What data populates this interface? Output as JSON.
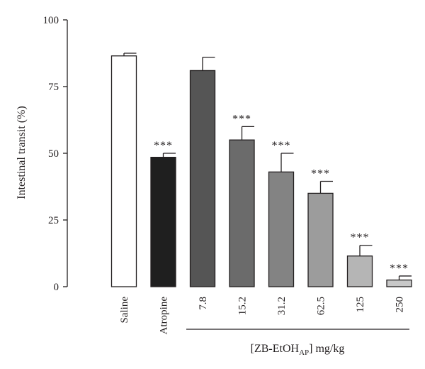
{
  "chart_data": {
    "type": "bar",
    "ylabel": "Intestinal transit (%)",
    "ylim": [
      0,
      100
    ],
    "yticks": [
      0,
      25,
      50,
      75,
      100
    ],
    "grid": false,
    "categories": [
      "Saline",
      "Atropine",
      "7.8",
      "15.2",
      "31.2",
      "62.5",
      "125",
      "250"
    ],
    "values": [
      86.5,
      48.5,
      81,
      55,
      43,
      35,
      11.5,
      2.5
    ],
    "errors": [
      1,
      1.5,
      5,
      5,
      7,
      4.5,
      4,
      1.5
    ],
    "significance": [
      "",
      "***",
      "",
      "***",
      "***",
      "***",
      "***",
      "***"
    ],
    "bar_colors": [
      "#ffffff",
      "#1f1f1f",
      "#555555",
      "#6b6b6b",
      "#838383",
      "#9c9c9c",
      "#b5b5b5",
      "#c8c8c8"
    ],
    "group_label": {
      "prefix": "[ZB-EtOH",
      "subscript": "AP",
      "suffix": "] mg/kg"
    }
  }
}
